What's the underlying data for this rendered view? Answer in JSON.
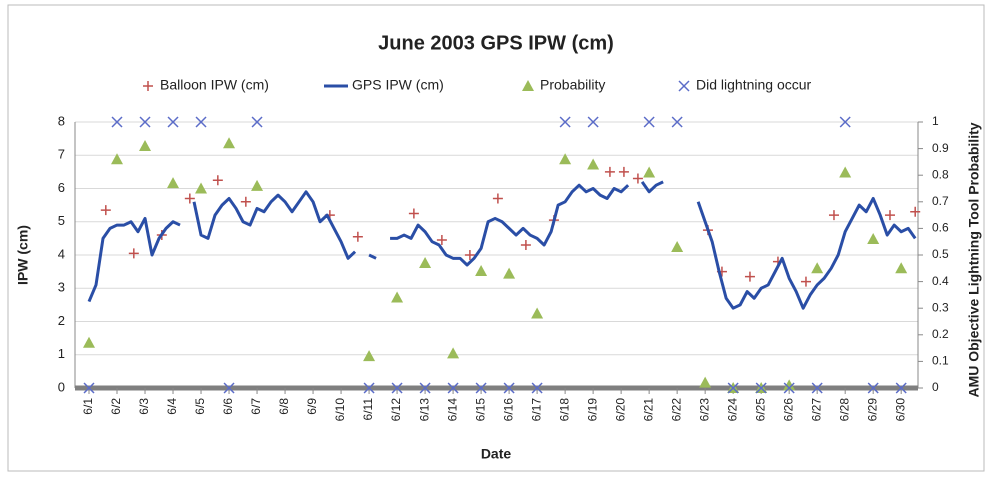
{
  "chart_data": {
    "type": "combo",
    "title": "June 2003 GPS IPW (cm)",
    "x_label": "Date",
    "y_label": "IPW (cm)",
    "y2_label": "AMU Objective Lightning Tool Probability",
    "xlim": [
      0.5,
      30.6
    ],
    "xticks": [
      {
        "value": 1,
        "label": "6/1"
      },
      {
        "value": 2,
        "label": "6/2"
      },
      {
        "value": 3,
        "label": "6/3"
      },
      {
        "value": 4,
        "label": "6/4"
      },
      {
        "value": 5,
        "label": "6/5"
      },
      {
        "value": 6,
        "label": "6/6"
      },
      {
        "value": 7,
        "label": "6/7"
      },
      {
        "value": 8,
        "label": "6/8"
      },
      {
        "value": 9,
        "label": "6/9"
      },
      {
        "value": 10,
        "label": "6/10"
      },
      {
        "value": 11,
        "label": "6/11"
      },
      {
        "value": 12,
        "label": "6/12"
      },
      {
        "value": 13,
        "label": "6/13"
      },
      {
        "value": 14,
        "label": "6/14"
      },
      {
        "value": 15,
        "label": "6/15"
      },
      {
        "value": 16,
        "label": "6/16"
      },
      {
        "value": 17,
        "label": "6/17"
      },
      {
        "value": 18,
        "label": "6/18"
      },
      {
        "value": 19,
        "label": "6/19"
      },
      {
        "value": 20,
        "label": "6/20"
      },
      {
        "value": 21,
        "label": "6/21"
      },
      {
        "value": 22,
        "label": "6/22"
      },
      {
        "value": 23,
        "label": "6/23"
      },
      {
        "value": 24,
        "label": "6/24"
      },
      {
        "value": 25,
        "label": "6/25"
      },
      {
        "value": 26,
        "label": "6/26"
      },
      {
        "value": 27,
        "label": "6/27"
      },
      {
        "value": 28,
        "label": "6/28"
      },
      {
        "value": 29,
        "label": "6/29"
      },
      {
        "value": 30,
        "label": "6/30"
      }
    ],
    "ylim": [
      0,
      8
    ],
    "yticks": [
      0,
      1,
      2,
      3,
      4,
      5,
      6,
      7,
      8
    ],
    "y2lim": [
      0,
      1
    ],
    "y2ticks": [
      0,
      0.1,
      0.2,
      0.3,
      0.4,
      0.5,
      0.6,
      0.7,
      0.8,
      0.9,
      1
    ],
    "grid": true,
    "legend": "top",
    "series": [
      {
        "name": "Balloon IPW (cm)",
        "kind": "plus",
        "color": "#c0504d",
        "x": [
          1.6,
          2.6,
          3.6,
          4.6,
          5.6,
          6.6,
          9.6,
          10.6,
          12.6,
          13.6,
          14.6,
          15.6,
          16.6,
          17.6,
          19.6,
          20.1,
          20.6,
          23.1,
          23.6,
          24.6,
          25.6,
          26.6,
          27.6,
          29.6,
          30.5
        ],
        "values": [
          5.35,
          4.05,
          4.6,
          5.7,
          6.25,
          5.6,
          5.2,
          4.55,
          5.25,
          4.45,
          4.0,
          5.7,
          4.3,
          5.05,
          6.5,
          6.5,
          6.3,
          4.75,
          3.5,
          3.35,
          3.8,
          3.2,
          5.2,
          5.2,
          5.3
        ]
      },
      {
        "name": "GPS IPW (cm)",
        "kind": "line",
        "color": "#2a4ea6",
        "x": [
          1,
          1.25,
          1.5,
          1.75,
          2,
          2.25,
          2.5,
          2.75,
          3,
          3.25,
          3.5,
          3.75,
          4,
          4.25,
          4.5,
          4.75,
          5,
          5.25,
          5.5,
          5.75,
          6,
          6.25,
          6.5,
          6.75,
          7,
          7.25,
          7.5,
          7.75,
          8,
          8.25,
          8.5,
          8.75,
          9,
          9.25,
          9.5,
          9.75,
          10,
          10.25,
          10.5,
          10.75,
          11,
          11.25,
          11.5,
          11.75,
          12,
          12.25,
          12.5,
          12.75,
          13,
          13.25,
          13.5,
          13.75,
          14,
          14.25,
          14.5,
          14.75,
          15,
          15.25,
          15.5,
          15.75,
          16,
          16.25,
          16.5,
          16.75,
          17,
          17.25,
          17.5,
          17.75,
          18,
          18.25,
          18.5,
          18.75,
          19,
          19.25,
          19.5,
          19.75,
          20,
          20.25,
          20.5,
          20.75,
          21,
          21.25,
          21.5,
          21.75,
          22.75,
          23,
          23.25,
          23.5,
          23.75,
          24,
          24.25,
          24.5,
          24.75,
          25,
          25.25,
          25.5,
          25.75,
          26,
          26.25,
          26.5,
          26.75,
          27,
          27.25,
          27.5,
          27.75,
          28,
          28.25,
          28.5,
          28.75,
          29,
          29.25,
          29.5,
          29.75,
          30,
          30.25,
          30.5
        ],
        "values": [
          2.6,
          3.1,
          4.5,
          4.8,
          4.9,
          4.9,
          5.0,
          4.7,
          5.1,
          4.0,
          4.5,
          4.8,
          5.0,
          4.9,
          null,
          5.6,
          4.6,
          4.5,
          5.2,
          5.5,
          5.7,
          5.4,
          5.0,
          4.9,
          5.4,
          5.3,
          5.6,
          5.8,
          5.6,
          5.3,
          5.6,
          5.9,
          5.6,
          5.0,
          5.2,
          4.8,
          4.4,
          3.9,
          4.1,
          null,
          4.0,
          3.9,
          null,
          4.5,
          4.5,
          4.6,
          4.5,
          4.9,
          4.7,
          4.4,
          4.3,
          4.0,
          3.9,
          3.9,
          3.7,
          3.9,
          4.2,
          5.0,
          5.1,
          5.0,
          4.8,
          4.6,
          4.8,
          4.6,
          4.5,
          4.3,
          4.7,
          5.5,
          5.6,
          5.9,
          6.1,
          5.9,
          6.0,
          5.8,
          5.7,
          6.0,
          5.9,
          6.1,
          null,
          6.2,
          5.9,
          6.1,
          6.2,
          null,
          5.6,
          5.0,
          4.4,
          3.5,
          2.7,
          2.4,
          2.5,
          2.9,
          2.7,
          3.0,
          3.1,
          3.5,
          3.9,
          3.3,
          2.9,
          2.4,
          2.8,
          3.1,
          3.3,
          3.6,
          4.0,
          4.7,
          5.1,
          5.5,
          5.3,
          5.7,
          5.2,
          4.6,
          4.9,
          4.7,
          4.8,
          4.5
        ]
      },
      {
        "name": "Probability",
        "kind": "triangle",
        "color": "#9bbb59",
        "axis": "y2",
        "x": [
          1,
          2,
          3,
          4,
          5,
          6,
          7,
          11,
          12,
          13,
          14,
          15,
          16,
          17,
          18,
          19,
          21,
          22,
          23,
          24,
          25,
          26,
          27,
          28,
          29,
          30
        ],
        "values": [
          0.17,
          0.86,
          0.91,
          0.77,
          0.75,
          0.92,
          0.76,
          0.12,
          0.34,
          0.47,
          0.13,
          0.44,
          0.43,
          0.28,
          0.86,
          0.84,
          0.81,
          0.53,
          0.02,
          0,
          0,
          0.01,
          0.45,
          0.81,
          0.56,
          0.45
        ]
      },
      {
        "name": "Did lightning occur",
        "kind": "cross",
        "color": "#5b6cc8",
        "axis": "y2",
        "x": [
          1,
          2,
          3,
          4,
          5,
          6,
          7,
          11,
          12,
          13,
          14,
          15,
          16,
          17,
          18,
          19,
          21,
          22,
          24,
          25,
          26,
          27,
          28,
          29,
          30
        ],
        "values": [
          0,
          1,
          1,
          1,
          1,
          0,
          1,
          0,
          0,
          0,
          0,
          0,
          0,
          0,
          1,
          1,
          1,
          1,
          0,
          0,
          0,
          0,
          1,
          0,
          0
        ]
      }
    ]
  }
}
